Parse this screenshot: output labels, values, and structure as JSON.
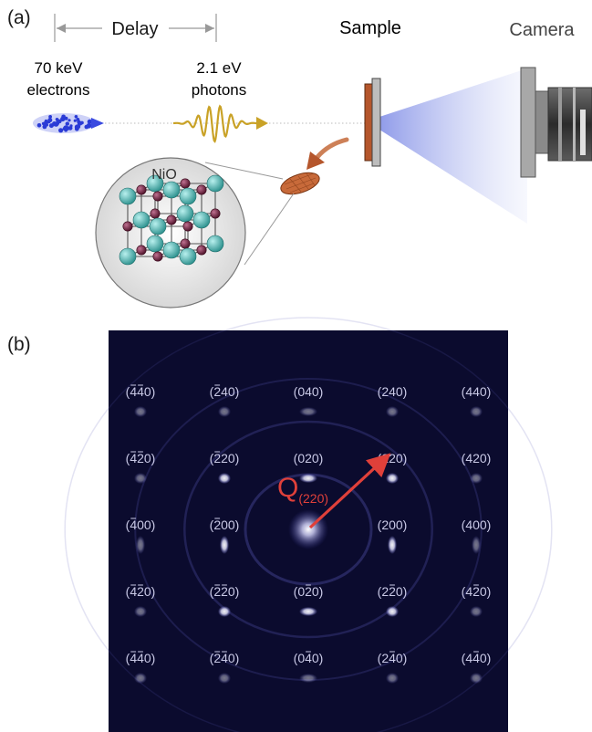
{
  "panel_a": {
    "panel_label": "(a)",
    "delay_label": "Delay",
    "electrons_line1": "70 keV",
    "electrons_line2": "electrons",
    "photons_line1": "2.1 eV",
    "photons_line2": "photons",
    "sample_label": "Sample",
    "camera_label": "Camera",
    "crystal_label": "NiO"
  },
  "panel_b": {
    "panel_label": "(b)",
    "q_label": "Q",
    "q_subscript": "(220)",
    "reflections": [
      [
        "(440)",
        "(240)",
        "(040)",
        "(240)",
        "(440)"
      ],
      [
        "(420)",
        "(220)",
        "(020)",
        "(220)",
        "(420)"
      ],
      [
        "(400)",
        "(200)",
        "",
        "(200)",
        "(400)"
      ],
      [
        "(420)",
        "(220)",
        "(020)",
        "(220)",
        "(420)"
      ],
      [
        "(440)",
        "(240)",
        "(040)",
        "(240)",
        "(440)"
      ]
    ],
    "overbar_index": [
      [
        0,
        0,
        -1,
        -1,
        -1
      ],
      [
        0,
        0,
        -1,
        -1,
        -1
      ],
      [
        0,
        0,
        -1,
        -1,
        -1
      ],
      [
        0,
        0,
        1,
        1,
        1
      ],
      [
        0,
        0,
        1,
        1,
        1
      ]
    ],
    "overbar_second": [
      [
        true,
        false,
        false,
        false,
        false
      ],
      [
        true,
        false,
        false,
        false,
        false
      ],
      [
        false,
        false,
        false,
        false,
        false
      ],
      [
        true,
        true,
        false,
        false,
        false
      ],
      [
        true,
        true,
        false,
        false,
        false
      ]
    ]
  },
  "colors": {
    "pattern_bg": "#0b0b2e",
    "spot": "#ffffff",
    "label_text": "#c9c9e6",
    "arrow": "#e0403a",
    "electron": "#2a3bd6",
    "photon": "#c9a227",
    "sample": "#b5562c",
    "ni_atom": "#3fb0ad",
    "o_atom": "#6a1f3a"
  }
}
